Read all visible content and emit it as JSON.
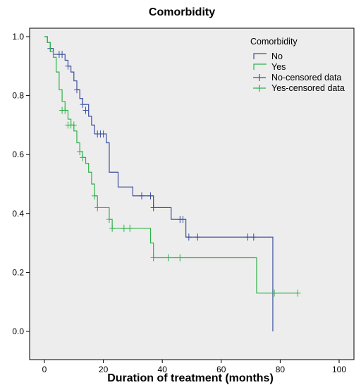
{
  "chart_data": {
    "type": "line",
    "subtype": "kaplan-meier step",
    "title": "Comorbidity",
    "xlabel": "Duration of treatment (months)",
    "ylabel": "",
    "xlim": [
      0,
      100
    ],
    "ylim": [
      0,
      1.0
    ],
    "x_ticks": [
      "0",
      "20",
      "40",
      "60",
      "80",
      "100"
    ],
    "y_ticks": [
      "0.0",
      "0.2",
      "0.4",
      "0.6",
      "0.8",
      "1.0"
    ],
    "grid": false,
    "background": "#ededed",
    "legend": {
      "title": "Comorbidity",
      "position": "top-right",
      "entries": [
        "No",
        "Yes",
        "No-censored data",
        "Yes-censored data"
      ]
    },
    "series": [
      {
        "name": "No",
        "color": "#3a4fa0",
        "steps": [
          [
            0,
            1.0
          ],
          [
            1,
            0.98
          ],
          [
            2,
            0.96
          ],
          [
            3,
            0.94
          ],
          [
            7,
            0.92
          ],
          [
            8,
            0.9
          ],
          [
            9,
            0.88
          ],
          [
            10,
            0.85
          ],
          [
            11,
            0.82
          ],
          [
            12,
            0.79
          ],
          [
            13,
            0.77
          ],
          [
            15,
            0.73
          ],
          [
            16,
            0.7
          ],
          [
            17,
            0.67
          ],
          [
            21,
            0.64
          ],
          [
            22,
            0.54
          ],
          [
            25,
            0.49
          ],
          [
            30,
            0.46
          ],
          [
            37,
            0.42
          ],
          [
            43,
            0.38
          ],
          [
            48,
            0.32
          ],
          [
            77.5,
            0.0
          ]
        ],
        "censored": [
          [
            2,
            0.96
          ],
          [
            5,
            0.94
          ],
          [
            6,
            0.94
          ],
          [
            8,
            0.9
          ],
          [
            11,
            0.82
          ],
          [
            13,
            0.77
          ],
          [
            14,
            0.75
          ],
          [
            18,
            0.67
          ],
          [
            19,
            0.67
          ],
          [
            20,
            0.67
          ],
          [
            33,
            0.46
          ],
          [
            36,
            0.46
          ],
          [
            37,
            0.42
          ],
          [
            46,
            0.38
          ],
          [
            47,
            0.38
          ],
          [
            49,
            0.32
          ],
          [
            52,
            0.32
          ],
          [
            69,
            0.32
          ],
          [
            71,
            0.32
          ]
        ]
      },
      {
        "name": "Yes",
        "color": "#2fb24a",
        "steps": [
          [
            0,
            1.0
          ],
          [
            1,
            0.98
          ],
          [
            2,
            0.95
          ],
          [
            3,
            0.93
          ],
          [
            4,
            0.88
          ],
          [
            5,
            0.82
          ],
          [
            6,
            0.78
          ],
          [
            7,
            0.75
          ],
          [
            8,
            0.72
          ],
          [
            9,
            0.7
          ],
          [
            10,
            0.68
          ],
          [
            11,
            0.64
          ],
          [
            12,
            0.61
          ],
          [
            13,
            0.59
          ],
          [
            14,
            0.57
          ],
          [
            15,
            0.54
          ],
          [
            16,
            0.5
          ],
          [
            17,
            0.46
          ],
          [
            18,
            0.42
          ],
          [
            22,
            0.38
          ],
          [
            23,
            0.35
          ],
          [
            36,
            0.3
          ],
          [
            37,
            0.25
          ],
          [
            72,
            0.13
          ]
        ],
        "censored": [
          [
            6,
            0.75
          ],
          [
            7,
            0.75
          ],
          [
            8,
            0.7
          ],
          [
            9,
            0.7
          ],
          [
            10,
            0.7
          ],
          [
            12,
            0.61
          ],
          [
            13,
            0.59
          ],
          [
            17,
            0.46
          ],
          [
            18,
            0.42
          ],
          [
            22,
            0.38
          ],
          [
            23,
            0.35
          ],
          [
            27,
            0.35
          ],
          [
            29,
            0.35
          ],
          [
            37,
            0.25
          ],
          [
            42,
            0.25
          ],
          [
            46,
            0.25
          ],
          [
            78,
            0.13
          ],
          [
            86,
            0.13
          ]
        ],
        "end": 86
      }
    ]
  }
}
